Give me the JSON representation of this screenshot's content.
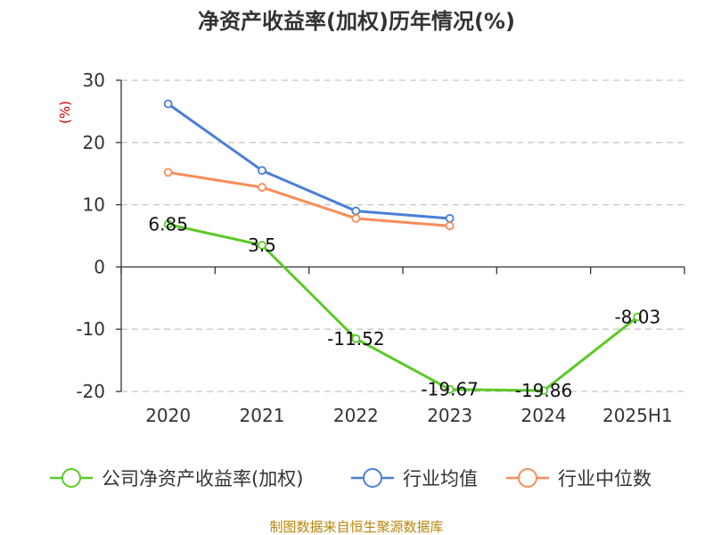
{
  "chart_data": {
    "type": "line",
    "title": "净资产收益率(加权)历年情况(%)",
    "ylabel": "(%)",
    "categories": [
      "2020",
      "2021",
      "2022",
      "2023",
      "2024",
      "2025H1"
    ],
    "ylim": [
      -20,
      30
    ],
    "yticks": [
      30,
      20,
      10,
      0,
      -10,
      -20
    ],
    "grid": true,
    "legend_position": "bottom",
    "series": [
      {
        "name": "公司净资产收益率(加权)",
        "color": "#5cc928",
        "values": [
          6.85,
          3.5,
          -11.52,
          -19.67,
          -19.86,
          -8.03
        ],
        "labels": [
          "6.85",
          "3.5",
          "-11.52",
          "-19.67",
          "-19.86",
          "-8.03"
        ]
      },
      {
        "name": "行业均值",
        "color": "#4a7fd8",
        "values": [
          26.2,
          15.5,
          9.0,
          7.8,
          null,
          null
        ]
      },
      {
        "name": "行业中位数",
        "color": "#f98c5a",
        "values": [
          15.2,
          12.8,
          7.8,
          6.6,
          null,
          null
        ]
      }
    ]
  },
  "source": "制图数据来自恒生聚源数据库"
}
